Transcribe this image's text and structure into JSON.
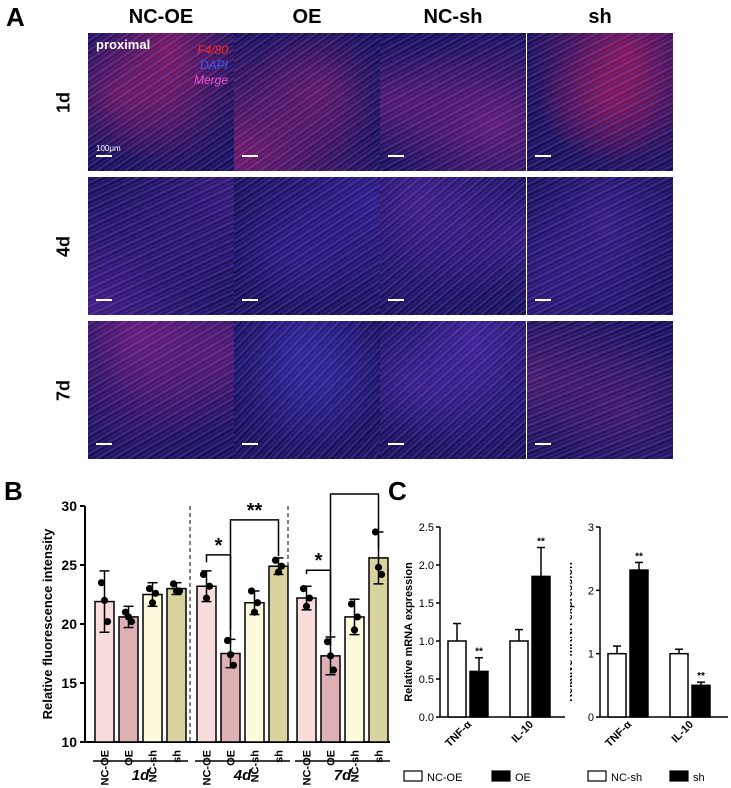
{
  "panel_a": {
    "letter": "A",
    "columns": [
      "NC-OE",
      "OE",
      "NC-sh",
      "sh"
    ],
    "rows": [
      "1d",
      "4d",
      "7d"
    ],
    "overlay_label": "proximal",
    "stain_legend": [
      {
        "text": "F4/80",
        "color": "#ff2a2a"
      },
      {
        "text": "DAPI",
        "color": "#3d5cff"
      },
      {
        "text": "Merge",
        "color": "#ff4fd8"
      }
    ],
    "scale_label": "100μm",
    "tile_tints": [
      [
        "#c0184a",
        "#b01850",
        "#9a1a6a",
        "#d0123c"
      ],
      [
        "#5a1a7a",
        "#3a1e8a",
        "#5a2088",
        "#4a1c80"
      ],
      [
        "#a01a70",
        "#3a2a9a",
        "#5a28a0",
        "#6a1a58"
      ]
    ]
  },
  "chart_data": [
    {
      "type": "bar",
      "panel": "B",
      "ylabel": "Relative fluorescence intensity",
      "ylim": [
        10,
        30
      ],
      "yticks": [
        10,
        15,
        20,
        25,
        30
      ],
      "groups": [
        {
          "label": "1d",
          "categories": [
            "NC-OE",
            "OE",
            "NC-sh",
            "sh"
          ],
          "values": [
            21.9,
            20.6,
            22.5,
            23.0
          ],
          "errors": [
            2.6,
            0.9,
            1.0,
            0.5
          ],
          "points": [
            [
              23.5,
              22.0,
              20.2
            ],
            [
              21.0,
              20.6,
              20.2
            ],
            [
              23.0,
              21.8,
              22.6
            ],
            [
              23.4,
              22.8,
              22.8
            ]
          ]
        },
        {
          "label": "4d",
          "categories": [
            "NC-OE",
            "OE",
            "NC-sh",
            "sh"
          ],
          "values": [
            23.2,
            17.5,
            21.8,
            24.9
          ],
          "errors": [
            1.3,
            1.2,
            1.0,
            0.7
          ],
          "points": [
            [
              24.2,
              22.2,
              23.2
            ],
            [
              18.6,
              17.4,
              16.5
            ],
            [
              22.8,
              21.0,
              21.8
            ],
            [
              25.4,
              24.4,
              24.9
            ]
          ]
        },
        {
          "label": "7d",
          "categories": [
            "NC-OE",
            "OE",
            "NC-sh",
            "sh"
          ],
          "values": [
            22.2,
            17.3,
            20.6,
            25.6
          ],
          "errors": [
            1.0,
            1.6,
            1.5,
            2.2
          ],
          "points": [
            [
              23.0,
              21.5,
              22.2
            ],
            [
              18.5,
              17.3,
              16.1
            ],
            [
              21.7,
              19.5,
              20.6
            ],
            [
              27.8,
              24.8,
              24.2
            ]
          ]
        }
      ],
      "colors": [
        "#f9dcdc",
        "#dfb0b3",
        "#fefbdc",
        "#d9d49e"
      ],
      "significance": [
        {
          "group": 1,
          "from": 0,
          "to": 1,
          "text": "*"
        },
        {
          "group": 1,
          "from": 1,
          "to": 3,
          "text": "**"
        },
        {
          "group": 2,
          "from": 0,
          "to": 1,
          "text": "*"
        },
        {
          "group": 2,
          "from": 1,
          "to": 3,
          "text": "**"
        }
      ]
    },
    {
      "type": "bar",
      "panel": "C",
      "ylabel": "Relative mRNA expression",
      "ylim": [
        0,
        2.5
      ],
      "yticks": [
        "0.0",
        "0.5",
        "1.0",
        "1.5",
        "2.0",
        "2.5"
      ],
      "categories": [
        "TNF-α",
        "IL-10"
      ],
      "series": [
        {
          "name": "NC-OE",
          "values": [
            1.0,
            1.0
          ],
          "errors": [
            0.23,
            0.15
          ]
        },
        {
          "name": "OE",
          "values": [
            0.6,
            1.85
          ],
          "errors": [
            0.18,
            0.38
          ]
        }
      ],
      "significance": [
        {
          "series": 1,
          "category": 0,
          "text": "**"
        },
        {
          "series": 1,
          "category": 1,
          "text": "**"
        }
      ]
    },
    {
      "type": "bar",
      "ylabel": "Relative mRNA expression",
      "ylim": [
        0,
        3
      ],
      "yticks": [
        "0",
        "1",
        "2",
        "3"
      ],
      "categories": [
        "TNF-α",
        "IL-10"
      ],
      "series": [
        {
          "name": "NC-sh",
          "values": [
            1.0,
            1.0
          ],
          "errors": [
            0.12,
            0.07
          ]
        },
        {
          "name": "sh",
          "values": [
            2.32,
            0.5
          ],
          "errors": [
            0.12,
            0.05
          ]
        }
      ],
      "significance": [
        {
          "series": 1,
          "category": 0,
          "text": "**"
        },
        {
          "series": 1,
          "category": 1,
          "text": "**"
        }
      ]
    }
  ]
}
